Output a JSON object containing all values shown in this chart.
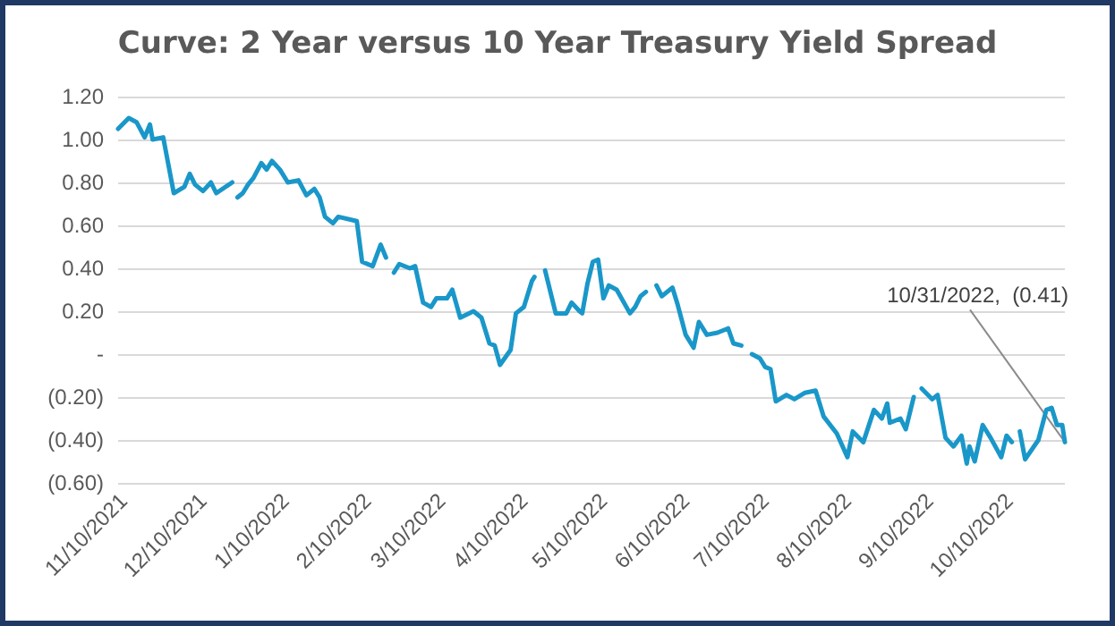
{
  "chart_data": {
    "type": "line",
    "title": "Curve: 2 Year versus 10 Year Treasury Yield Spread",
    "x": [
      "2021-11-08",
      "2021-11-12",
      "2021-11-15",
      "2021-11-18",
      "2021-11-20",
      "2021-11-21",
      "2021-11-25",
      "2021-11-29",
      "2021-12-03",
      "2021-12-05",
      "2021-12-07",
      "2021-12-10",
      "2021-12-13",
      "2021-12-15",
      "2021-12-21",
      "2021-12-22",
      "2021-12-23",
      "2021-12-25",
      "2021-12-27",
      "2021-12-29",
      "2022-01-01",
      "2022-01-03",
      "2022-01-05",
      "2022-01-08",
      "2022-01-11",
      "2022-01-15",
      "2022-01-18",
      "2022-01-21",
      "2022-01-23",
      "2022-01-25",
      "2022-01-28",
      "2022-01-30",
      "2022-02-06",
      "2022-02-08",
      "2022-02-12",
      "2022-02-15",
      "2022-02-17",
      "2022-02-19",
      "2022-02-20",
      "2022-02-22",
      "2022-02-26",
      "2022-02-28",
      "2022-03-03",
      "2022-03-06",
      "2022-03-08",
      "2022-03-12",
      "2022-03-14",
      "2022-03-17",
      "2022-03-22",
      "2022-03-25",
      "2022-03-28",
      "2022-03-30",
      "2022-04-01",
      "2022-04-05",
      "2022-04-07",
      "2022-04-10",
      "2022-04-13",
      "2022-04-14",
      "2022-04-16",
      "2022-04-18",
      "2022-04-21",
      "2022-04-22",
      "2022-04-26",
      "2022-04-28",
      "2022-05-01",
      "2022-05-02",
      "2022-05-04",
      "2022-05-06",
      "2022-05-08",
      "2022-05-10",
      "2022-05-12",
      "2022-05-15",
      "2022-05-20",
      "2022-05-22",
      "2022-05-24",
      "2022-05-26",
      "2022-05-28",
      "2022-05-30",
      "2022-06-01",
      "2022-06-05",
      "2022-06-07",
      "2022-06-10",
      "2022-06-13",
      "2022-06-15",
      "2022-06-18",
      "2022-06-22",
      "2022-06-26",
      "2022-06-28",
      "2022-07-01",
      "2022-07-03",
      "2022-07-05",
      "2022-07-08",
      "2022-07-10",
      "2022-07-12",
      "2022-07-14",
      "2022-07-18",
      "2022-07-21",
      "2022-07-25",
      "2022-07-29",
      "2022-08-01",
      "2022-08-06",
      "2022-08-10",
      "2022-08-12",
      "2022-08-16",
      "2022-08-20",
      "2022-08-23",
      "2022-08-25",
      "2022-08-26",
      "2022-08-30",
      "2022-09-01",
      "2022-09-04",
      "2022-09-05",
      "2022-09-07",
      "2022-09-11",
      "2022-09-13",
      "2022-09-16",
      "2022-09-19",
      "2022-09-22",
      "2022-09-24",
      "2022-09-25",
      "2022-09-27",
      "2022-09-30",
      "2022-10-03",
      "2022-10-07",
      "2022-10-09",
      "2022-10-11",
      "2022-10-12",
      "2022-10-14",
      "2022-10-16",
      "2022-10-21",
      "2022-10-24",
      "2022-10-26",
      "2022-10-28",
      "2022-10-30",
      "2022-10-31"
    ],
    "series": [
      {
        "color": "#1a97c9",
        "values": [
          1.05,
          1.1,
          1.08,
          1.01,
          1.07,
          1.0,
          1.01,
          0.75,
          0.78,
          0.84,
          0.79,
          0.76,
          0.8,
          0.75,
          0.8,
          null,
          0.73,
          0.75,
          0.79,
          0.82,
          0.89,
          0.86,
          0.9,
          0.86,
          0.8,
          0.81,
          0.74,
          0.77,
          0.73,
          0.64,
          0.61,
          0.64,
          0.62,
          0.43,
          0.41,
          0.51,
          0.45,
          null,
          0.38,
          0.42,
          0.4,
          0.41,
          0.24,
          0.22,
          0.26,
          0.26,
          0.3,
          0.17,
          0.2,
          0.17,
          0.05,
          0.04,
          -0.05,
          0.02,
          0.19,
          0.22,
          0.34,
          0.36,
          null,
          0.39,
          0.24,
          0.19,
          0.19,
          0.24,
          0.2,
          0.19,
          0.33,
          0.43,
          0.44,
          0.26,
          0.32,
          0.3,
          0.19,
          0.22,
          0.27,
          0.29,
          null,
          0.32,
          0.27,
          0.31,
          0.23,
          0.09,
          0.03,
          0.15,
          0.09,
          0.1,
          0.12,
          0.05,
          0.04,
          null,
          0.0,
          -0.02,
          -0.06,
          -0.07,
          -0.22,
          -0.19,
          -0.21,
          -0.18,
          -0.17,
          -0.29,
          -0.37,
          -0.48,
          -0.36,
          -0.41,
          -0.26,
          -0.3,
          -0.23,
          -0.32,
          -0.3,
          -0.35,
          -0.2,
          null,
          -0.16,
          -0.21,
          -0.19,
          -0.39,
          -0.43,
          -0.38,
          -0.51,
          -0.43,
          -0.5,
          -0.33,
          -0.39,
          -0.48,
          -0.38,
          -0.41,
          null,
          -0.36,
          -0.49,
          -0.4,
          -0.26,
          -0.25,
          -0.33,
          -0.33,
          -0.41
        ]
      }
    ],
    "xlim": [
      "2021-11-08",
      "2022-10-31"
    ],
    "xticks": [
      {
        "value": "2021-11-10",
        "label": "11/10/2021"
      },
      {
        "value": "2021-12-10",
        "label": "12/10/2021"
      },
      {
        "value": "2022-01-10",
        "label": "1/10/2022"
      },
      {
        "value": "2022-02-10",
        "label": "2/10/2022"
      },
      {
        "value": "2022-03-10",
        "label": "3/10/2022"
      },
      {
        "value": "2022-04-10",
        "label": "4/10/2022"
      },
      {
        "value": "2022-05-10",
        "label": "5/10/2022"
      },
      {
        "value": "2022-06-10",
        "label": "6/10/2022"
      },
      {
        "value": "2022-07-10",
        "label": "7/10/2022"
      },
      {
        "value": "2022-08-10",
        "label": "8/10/2022"
      },
      {
        "value": "2022-09-10",
        "label": "9/10/2022"
      },
      {
        "value": "2022-10-10",
        "label": "10/10/2022"
      }
    ],
    "ylim": [
      -0.6,
      1.2
    ],
    "yticks": [
      {
        "value": -0.6,
        "label": "(0.60)"
      },
      {
        "value": -0.4,
        "label": "(0.40)"
      },
      {
        "value": -0.2,
        "label": "(0.20)"
      },
      {
        "value": 0,
        "label": "-"
      },
      {
        "value": 0.2,
        "label": "0.20"
      },
      {
        "value": 0.4,
        "label": "0.40"
      },
      {
        "value": 0.6,
        "label": "0.60"
      },
      {
        "value": 0.8,
        "label": "0.80"
      },
      {
        "value": 1.0,
        "label": "1.00"
      },
      {
        "value": 1.2,
        "label": "1.20"
      }
    ],
    "annotations": [
      {
        "text": "10/31/2022,  (0.41)",
        "x": "2022-10-31",
        "y": -0.41
      }
    ],
    "grid": "y",
    "marker": "none",
    "line_style": "solid"
  }
}
